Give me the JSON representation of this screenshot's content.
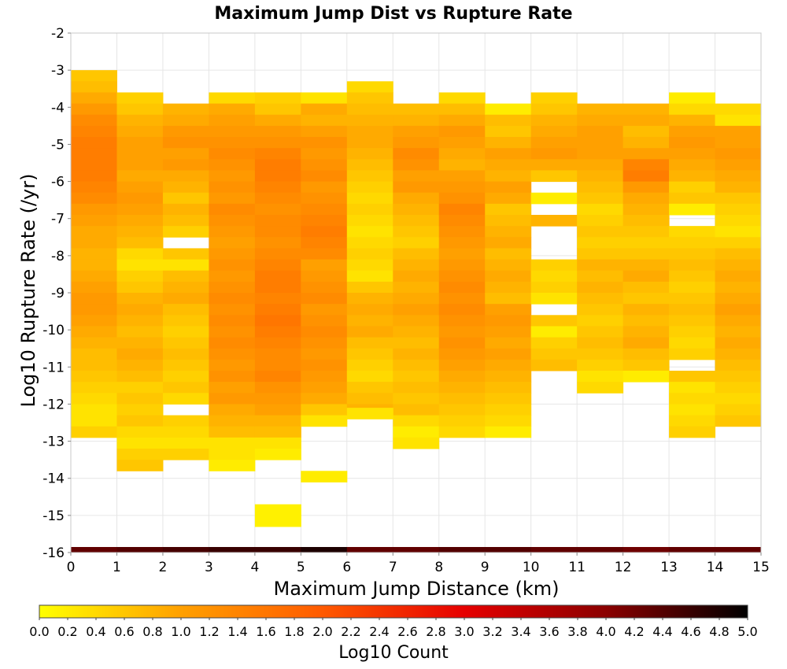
{
  "chart_data": {
    "type": "heatmap",
    "title": "Maximum Jump Dist vs Rupture Rate",
    "xlabel": "Maximum Jump Distance (km)",
    "ylabel": "Log10 Rupture Rate (/yr)",
    "xlim": [
      0,
      15
    ],
    "ylim": [
      -16,
      -2
    ],
    "x_ticks": [
      "0",
      "1",
      "2",
      "3",
      "4",
      "5",
      "6",
      "7",
      "8",
      "9",
      "10",
      "11",
      "12",
      "13",
      "14",
      "15"
    ],
    "y_ticks": [
      "-2",
      "-3",
      "-4",
      "-5",
      "-6",
      "-7",
      "-8",
      "-9",
      "-10",
      "-11",
      "-12",
      "-13",
      "-14",
      "-15",
      "-16"
    ],
    "grid": true,
    "bin_width_x": 1,
    "bin_height_y": 0.3,
    "columns": [
      {
        "x": 0,
        "y_start": -3.0,
        "cells": [
          0.6,
          0.7,
          0.9,
          1.1,
          1.3,
          1.4,
          1.5,
          1.5,
          1.5,
          1.5,
          1.4,
          1.3,
          1.1,
          1.0,
          0.9,
          0.9,
          0.8,
          0.8,
          0.9,
          1.0,
          1.1,
          1.1,
          1.0,
          0.9,
          0.8,
          0.7,
          0.7,
          0.6,
          0.5,
          0.4,
          0.3,
          0.3,
          0.5,
          -1,
          -1,
          -1,
          -1,
          -1,
          -1,
          -1,
          -1,
          -1,
          -1,
          -1,
          -1,
          -1
        ]
      },
      {
        "x": 1,
        "y_start": -3.6,
        "cells": [
          0.5,
          0.6,
          0.8,
          0.9,
          1.0,
          1.0,
          1.0,
          0.9,
          1.0,
          1.1,
          1.0,
          0.9,
          0.8,
          0.7,
          0.4,
          0.3,
          0.5,
          0.6,
          0.8,
          0.9,
          0.8,
          0.7,
          0.8,
          0.9,
          0.8,
          0.7,
          0.5,
          0.6,
          0.5,
          0.6,
          0.4,
          0.3,
          0.5,
          0.6,
          -1,
          -1,
          -1,
          -1,
          -1,
          -1,
          -1,
          -1,
          -1,
          -1,
          -1,
          -1,
          -1,
          -1
        ]
      },
      {
        "x": 2,
        "y_start": -3.9,
        "cells": [
          0.8,
          0.9,
          1.1,
          1.2,
          1.0,
          1.1,
          0.9,
          0.8,
          0.6,
          0.8,
          0.7,
          0.5,
          -1,
          0.6,
          0.3,
          0.7,
          0.8,
          0.9,
          0.7,
          0.6,
          0.5,
          0.6,
          0.7,
          0.6,
          0.5,
          0.6,
          0.4,
          -1,
          0.5,
          0.4,
          0.3,
          0.5,
          -1,
          -1,
          -1,
          -1,
          -1,
          -1,
          -1,
          -1,
          -1,
          -1,
          -1,
          -1,
          -1,
          -1,
          -1
        ]
      },
      {
        "x": 3,
        "y_start": -3.6,
        "cells": [
          0.4,
          0.9,
          1.0,
          1.1,
          1.2,
          1.3,
          1.2,
          1.1,
          1.2,
          1.1,
          1.3,
          1.2,
          1.1,
          1.0,
          1.1,
          1.2,
          1.1,
          1.2,
          1.3,
          1.2,
          1.3,
          1.2,
          1.3,
          1.2,
          1.1,
          1.2,
          1.0,
          1.1,
          0.9,
          0.8,
          0.7,
          0.3,
          0.3,
          0.2,
          -1,
          -1,
          -1,
          -1,
          -1,
          -1,
          -1,
          -1,
          -1,
          -1,
          -1,
          -1,
          -1,
          -1,
          -1
        ]
      },
      {
        "x": 4,
        "y_start": -3.6,
        "cells": [
          0.5,
          0.6,
          0.9,
          1.1,
          1.2,
          1.4,
          1.5,
          1.5,
          1.4,
          1.3,
          1.2,
          1.3,
          1.3,
          1.2,
          1.3,
          1.4,
          1.5,
          1.5,
          1.4,
          1.5,
          1.6,
          1.5,
          1.4,
          1.3,
          1.3,
          1.4,
          1.2,
          1.1,
          1.0,
          0.8,
          0.7,
          0.3,
          0.2,
          -1,
          -1,
          -1,
          -1,
          -1,
          -1,
          -1,
          -1,
          -1,
          -1,
          -1,
          -1,
          -1,
          -1,
          -1,
          -1
        ]
      },
      {
        "x": 5,
        "y_start": -3.6,
        "cells": [
          0.3,
          0.9,
          0.8,
          1.0,
          1.2,
          1.1,
          1.2,
          1.3,
          1.1,
          1.2,
          1.3,
          1.4,
          1.5,
          1.4,
          1.3,
          1.0,
          1.1,
          1.2,
          1.3,
          1.1,
          1.2,
          1.3,
          1.2,
          1.1,
          1.2,
          1.1,
          1.0,
          0.9,
          0.6,
          0.3,
          -1,
          -1,
          -1,
          -1,
          -1,
          -1,
          -1,
          -1,
          -1,
          -1,
          -1,
          -1,
          -1,
          -1,
          -1,
          -1
        ]
      },
      {
        "x": 6,
        "y_start": -3.3,
        "cells": [
          0.4,
          0.6,
          0.7,
          0.8,
          0.9,
          0.9,
          0.8,
          0.7,
          0.6,
          0.5,
          0.4,
          0.5,
          0.4,
          0.3,
          0.4,
          0.5,
          0.4,
          0.3,
          0.6,
          0.8,
          0.9,
          0.8,
          0.9,
          0.7,
          0.6,
          0.5,
          0.4,
          0.6,
          0.7,
          0.8,
          -1,
          -1,
          -1,
          -1,
          -1,
          -1,
          -1,
          -1,
          -1,
          -1,
          -1,
          -1,
          -1,
          -1,
          -1,
          -1,
          -1
        ]
      },
      {
        "x": 7,
        "y_start": -3.9,
        "cells": [
          0.7,
          0.8,
          1.0,
          1.1,
          1.3,
          1.2,
          1.0,
          1.1,
          0.9,
          0.8,
          0.7,
          0.6,
          0.5,
          0.7,
          0.8,
          0.9,
          0.8,
          0.9,
          1.0,
          0.9,
          0.8,
          0.7,
          0.8,
          0.7,
          0.6,
          0.7,
          0.6,
          0.7,
          0.4,
          0.2,
          0.3,
          -1,
          -1,
          -1,
          -1,
          -1,
          -1,
          -1,
          -1,
          -1,
          -1,
          -1,
          -1,
          -1,
          -1,
          -1,
          -1,
          -1
        ]
      },
      {
        "x": 8,
        "y_start": -3.6,
        "cells": [
          0.4,
          0.7,
          0.9,
          1.1,
          1.0,
          0.9,
          0.8,
          1.0,
          1.1,
          1.2,
          1.4,
          1.3,
          1.2,
          1.1,
          1.0,
          1.1,
          1.2,
          1.3,
          1.2,
          1.3,
          1.2,
          1.1,
          1.2,
          1.1,
          1.0,
          0.9,
          0.8,
          0.7,
          0.6,
          0.5,
          0.4,
          -1,
          -1,
          -1,
          -1,
          -1,
          -1,
          -1,
          -1,
          -1,
          -1,
          -1,
          -1,
          -1,
          -1,
          -1,
          -1,
          -1
        ]
      },
      {
        "x": 9,
        "y_start": -3.9,
        "cells": [
          0.2,
          0.7,
          0.6,
          0.8,
          1.0,
          0.9,
          0.8,
          1.0,
          0.9,
          0.6,
          0.7,
          0.8,
          0.9,
          0.7,
          0.8,
          0.9,
          0.8,
          0.7,
          1.0,
          1.1,
          1.0,
          0.9,
          1.0,
          0.9,
          0.8,
          0.7,
          0.6,
          0.5,
          0.4,
          0.2,
          -1,
          -1,
          -1,
          -1,
          -1,
          -1,
          -1,
          -1,
          -1,
          -1,
          -1,
          -1,
          -1,
          -1,
          -1,
          -1,
          -1
        ]
      },
      {
        "x": 10,
        "y_start": -3.6,
        "cells": [
          0.5,
          0.6,
          0.8,
          0.9,
          1.0,
          1.1,
          0.9,
          0.6,
          -1,
          0.2,
          -1,
          0.8,
          -1,
          -1,
          -1,
          0.5,
          0.4,
          0.5,
          0.3,
          -1,
          0.6,
          0.2,
          0.5,
          0.6,
          0.7,
          -1,
          -1,
          -1,
          -1,
          -1,
          -1,
          -1,
          -1,
          -1,
          -1,
          -1,
          -1,
          -1,
          -1,
          -1,
          -1,
          -1,
          -1,
          -1,
          -1,
          -1,
          -1
        ]
      },
      {
        "x": 11,
        "y_start": -3.9,
        "cells": [
          0.8,
          0.9,
          1.0,
          1.0,
          1.0,
          0.9,
          0.8,
          0.7,
          0.6,
          0.4,
          0.5,
          0.6,
          0.5,
          0.6,
          0.8,
          0.7,
          0.8,
          0.7,
          0.6,
          0.5,
          0.6,
          0.7,
          0.6,
          0.5,
          0.3,
          0.4,
          -1,
          -1,
          -1,
          -1,
          -1,
          -1,
          -1,
          -1,
          -1,
          -1,
          -1,
          -1,
          -1,
          -1,
          -1,
          -1,
          -1,
          -1,
          -1,
          -1
        ]
      },
      {
        "x": 12,
        "y_start": -3.9,
        "cells": [
          0.8,
          0.9,
          0.7,
          0.8,
          1.0,
          1.4,
          1.5,
          1.1,
          0.9,
          0.8,
          0.7,
          0.6,
          0.5,
          0.6,
          0.8,
          0.9,
          0.7,
          0.6,
          0.8,
          0.7,
          0.8,
          0.9,
          0.7,
          0.6,
          0.2,
          -1,
          -1,
          -1,
          -1,
          -1,
          -1,
          -1,
          -1,
          -1,
          -1,
          -1,
          -1,
          -1,
          -1,
          -1,
          -1,
          -1,
          -1,
          -1,
          -1,
          -1
        ]
      },
      {
        "x": 13,
        "y_start": -3.6,
        "cells": [
          0.2,
          0.4,
          0.8,
          1.0,
          1.1,
          1.0,
          0.9,
          0.8,
          0.5,
          0.6,
          0.2,
          -1,
          0.4,
          0.5,
          0.6,
          0.7,
          0.6,
          0.5,
          0.6,
          0.7,
          0.6,
          0.5,
          0.4,
          0.5,
          -1,
          0.6,
          0.3,
          0.4,
          0.3,
          0.4,
          0.5,
          -1,
          -1,
          -1,
          -1,
          -1,
          -1,
          -1,
          -1,
          -1,
          -1,
          -1,
          -1,
          -1,
          -1,
          -1,
          -1,
          -1
        ]
      },
      {
        "x": 14,
        "y_start": -3.9,
        "cells": [
          0.4,
          0.3,
          1.0,
          1.0,
          1.1,
          1.0,
          0.9,
          0.8,
          0.6,
          0.5,
          0.4,
          0.3,
          0.5,
          0.7,
          0.8,
          0.9,
          0.8,
          0.9,
          1.0,
          0.9,
          0.8,
          0.9,
          0.8,
          0.7,
          0.6,
          0.5,
          0.4,
          0.5,
          0.6,
          -1,
          -1,
          -1,
          -1,
          -1,
          -1,
          -1,
          -1,
          -1,
          -1,
          -1,
          -1,
          -1,
          -1,
          -1,
          -1
        ]
      }
    ],
    "extra_cells": [
      {
        "x": 6,
        "y": -12.4,
        "value": 0.3
      },
      {
        "x": 5,
        "y": -14.1,
        "value": 0.2
      },
      {
        "x": 4,
        "y": -15.3,
        "value": 0.15
      },
      {
        "x": 4,
        "y": -15.0,
        "value": 0.15
      }
    ],
    "bottom_row": {
      "y": -16,
      "values": [
        4.3,
        4.4,
        4.5,
        4.6,
        4.6,
        4.8,
        4.3,
        4.3,
        4.4,
        4.4,
        4.3,
        4.3,
        4.2,
        4.3,
        4.3
      ]
    },
    "colorbar": {
      "label": "Log10 Count",
      "min": 0.0,
      "max": 5.0,
      "ticks": [
        "0.0",
        "0.2",
        "0.4",
        "0.6",
        "0.8",
        "1.0",
        "1.2",
        "1.4",
        "1.6",
        "1.8",
        "2.0",
        "2.2",
        "2.4",
        "2.6",
        "2.8",
        "3.0",
        "3.2",
        "3.4",
        "3.6",
        "3.8",
        "4.0",
        "4.2",
        "4.4",
        "4.6",
        "4.8",
        "5.0"
      ],
      "colors": [
        "#ffff00",
        "#ffa000",
        "#ff5a00",
        "#e60000",
        "#8b0000",
        "#000000"
      ]
    }
  }
}
